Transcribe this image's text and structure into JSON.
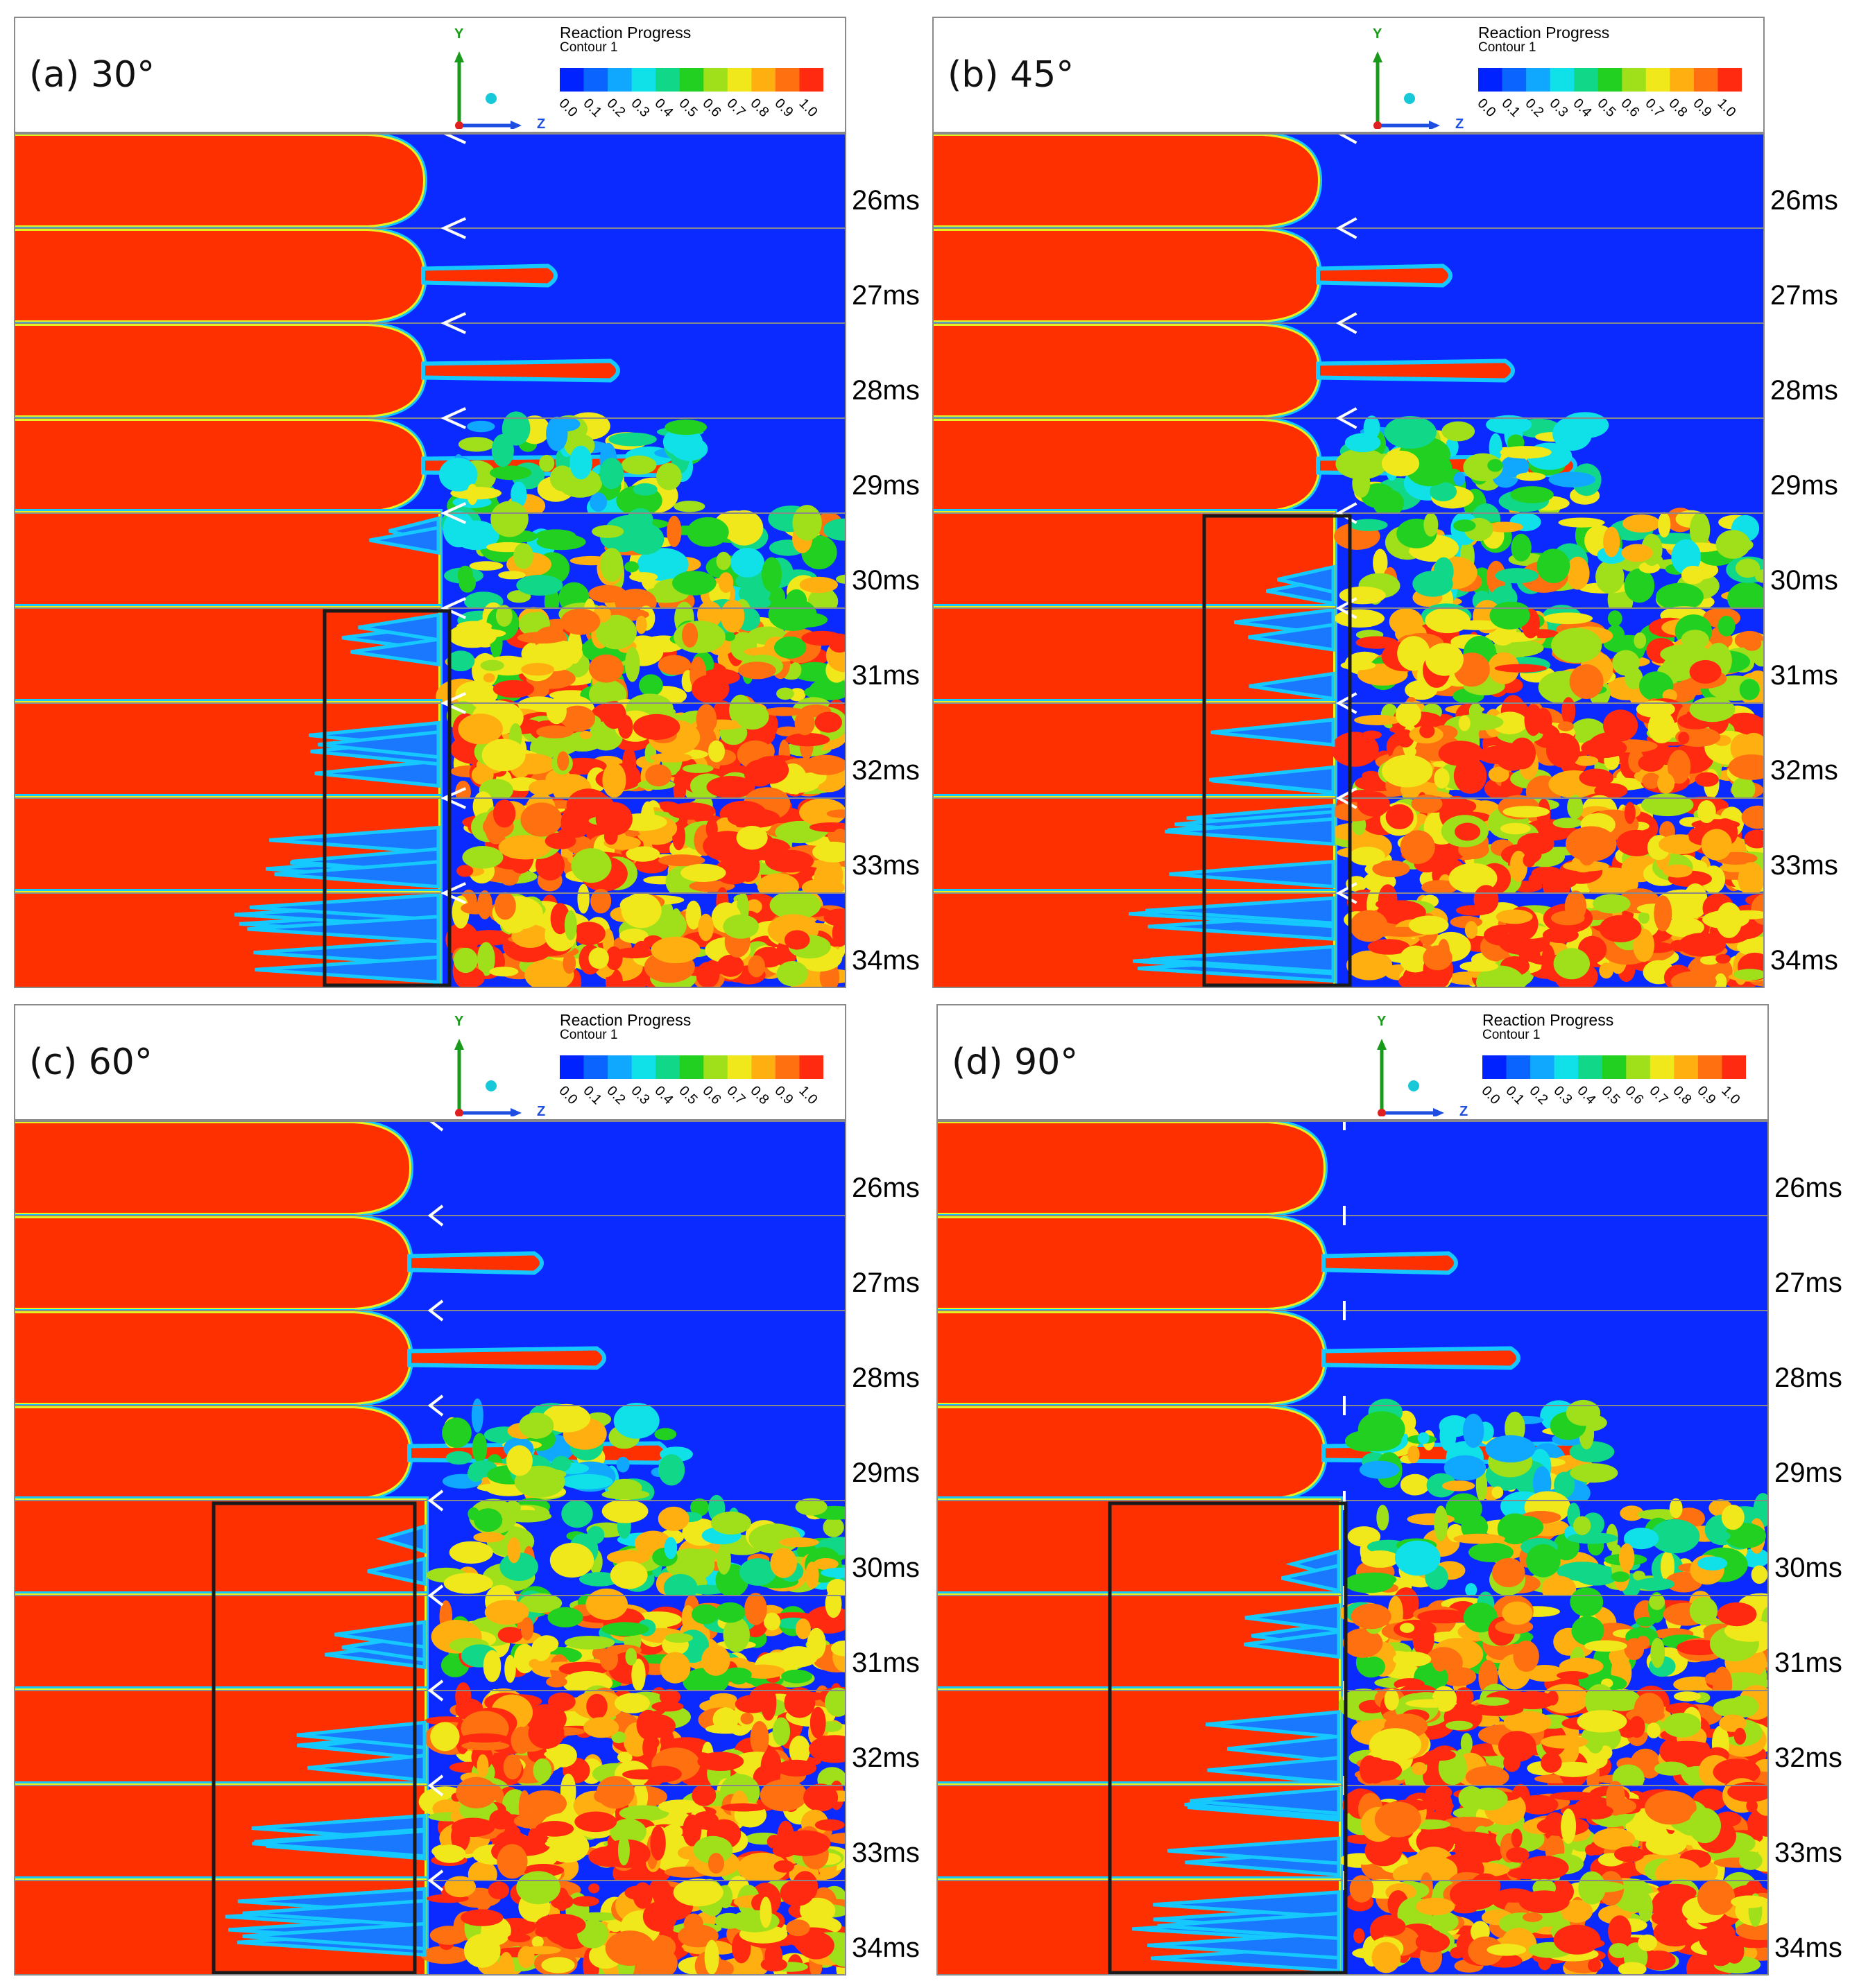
{
  "figure": {
    "legend": {
      "title": "Reaction Progress",
      "subtitle": "Contour 1",
      "ticks": [
        "0.0",
        "0.1",
        "0.2",
        "0.3",
        "0.4",
        "0.5",
        "0.6",
        "0.7",
        "0.8",
        "0.9",
        "1.0"
      ],
      "colors": [
        "#0022ff",
        "#0a64ff",
        "#10a8ff",
        "#10e0e8",
        "#10d888",
        "#22d022",
        "#a0e01a",
        "#f0e81a",
        "#ffb010",
        "#ff7010",
        "#ff2a10"
      ]
    },
    "axes": {
      "y": "Y",
      "z": "Z"
    },
    "colors": {
      "burned": "#ff3000",
      "unburned": "#0a2aff",
      "front": "#15c9ff",
      "box": "#1a1a1a",
      "separator": "#8a8a8a"
    },
    "time_labels": [
      "26ms",
      "27ms",
      "28ms",
      "29ms",
      "30ms",
      "31ms",
      "32ms",
      "33ms",
      "34ms"
    ],
    "panels": [
      {
        "id": "a",
        "label": "(a) 30°",
        "angle_deg": 30
      },
      {
        "id": "b",
        "label": "(b) 45°",
        "angle_deg": 45
      },
      {
        "id": "c",
        "label": "(c) 60°",
        "angle_deg": 60
      },
      {
        "id": "d",
        "label": "(d) 90°",
        "angle_deg": 90
      }
    ]
  }
}
